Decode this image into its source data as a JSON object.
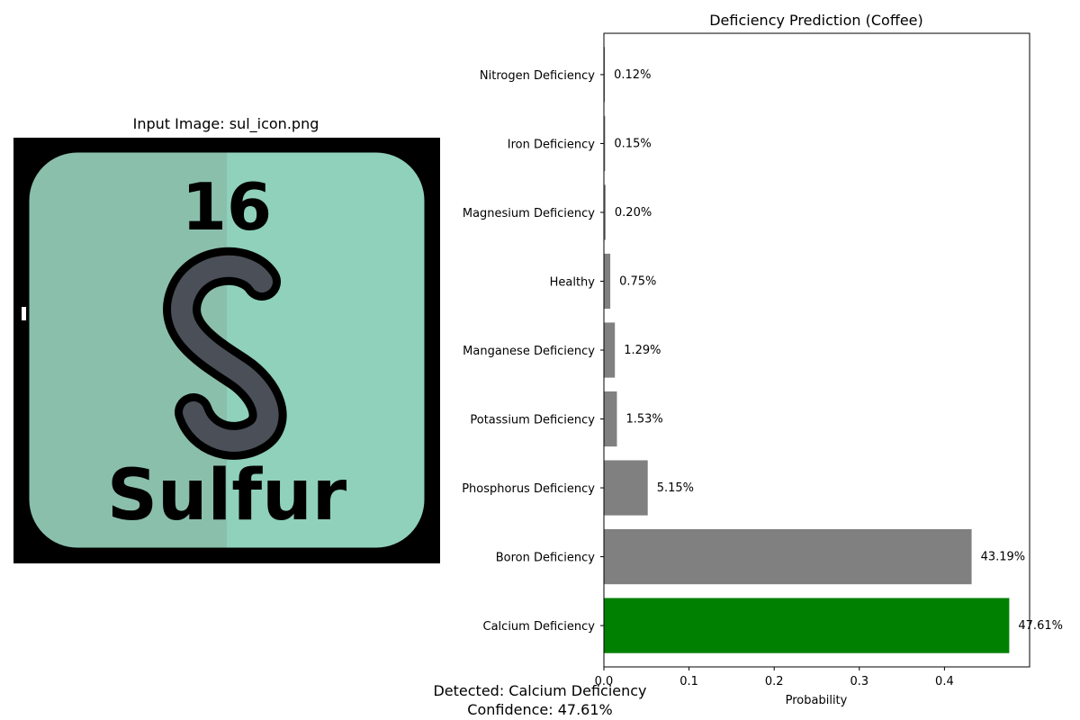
{
  "image_panel": {
    "title": "Input Image: sul_icon.png",
    "element_number": "16",
    "element_symbol": "S",
    "element_name": "Sulfur",
    "icon_bg_left": "#8abfac",
    "icon_bg_right": "#8fd1bb",
    "icon_letter_fill": "#4a4f58"
  },
  "chart_data": {
    "type": "bar",
    "orientation": "horizontal",
    "title": "Deficiency Prediction (Coffee)",
    "xlabel": "Probability",
    "ylabel": "",
    "xlim": [
      0,
      0.5
    ],
    "xticks": [
      0,
      0.1,
      0.2,
      0.3,
      0.4
    ],
    "xtick_labels": [
      "0.0",
      "0.1",
      "0.2",
      "0.3",
      "0.4"
    ],
    "categories": [
      "Calcium Deficiency",
      "Boron Deficiency",
      "Phosphorus Deficiency",
      "Potassium Deficiency",
      "Manganese Deficiency",
      "Healthy",
      "Magnesium Deficiency",
      "Iron Deficiency",
      "Nitrogen Deficiency"
    ],
    "values": [
      0.4761,
      0.4319,
      0.0515,
      0.0153,
      0.0129,
      0.0075,
      0.002,
      0.0015,
      0.0012
    ],
    "labels": [
      "47.61%",
      "43.19%",
      "5.15%",
      "1.53%",
      "1.29%",
      "0.75%",
      "0.20%",
      "0.15%",
      "0.12%"
    ],
    "highlight_color": "#008000",
    "bar_color": "#808080",
    "grid": false
  },
  "result": {
    "detected": "Detected: Calcium Deficiency",
    "confidence": "Confidence: 47.61%"
  }
}
